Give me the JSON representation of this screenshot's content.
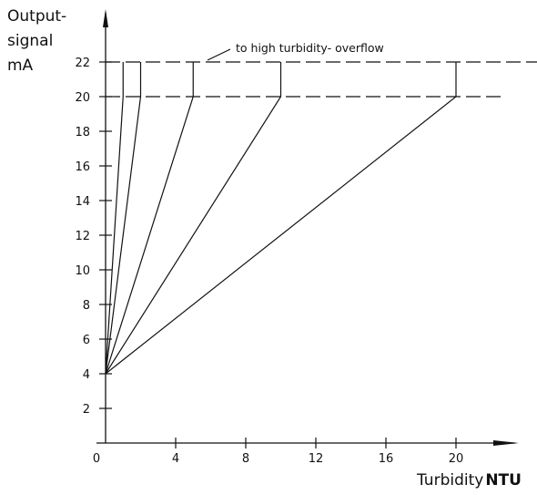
{
  "ylabel_lines": [
    "Output-",
    "signal",
    "mA"
  ],
  "xlabel": {
    "text": "Turbidity",
    "unit": "NTU"
  },
  "annotation": "to high turbidity- overflow",
  "chart_data": {
    "type": "line",
    "title": "",
    "xlabel": "Turbidity NTU",
    "ylabel": "Output-signal mA",
    "xlim": [
      0,
      22
    ],
    "ylim": [
      0,
      23
    ],
    "xticks": [
      0,
      4,
      8,
      12,
      16,
      20
    ],
    "yticks": [
      2,
      4,
      6,
      8,
      10,
      12,
      14,
      16,
      18,
      20,
      22
    ],
    "series": [
      {
        "points": [
          [
            0,
            4
          ],
          [
            1,
            20
          ],
          [
            1,
            22
          ]
        ]
      },
      {
        "points": [
          [
            0,
            4
          ],
          [
            2,
            20
          ],
          [
            2,
            22
          ]
        ]
      },
      {
        "points": [
          [
            0,
            4
          ],
          [
            5,
            20
          ],
          [
            5,
            22
          ]
        ]
      },
      {
        "points": [
          [
            0,
            4
          ],
          [
            10,
            20
          ],
          [
            10,
            22
          ]
        ]
      },
      {
        "points": [
          [
            0,
            4
          ],
          [
            20,
            20
          ],
          [
            20,
            22
          ]
        ]
      }
    ],
    "reference_lines": [
      {
        "y": 20,
        "style": "dashed"
      },
      {
        "y": 22,
        "style": "dashed"
      }
    ],
    "grid": false,
    "legend": "none",
    "colors": {
      "line": "#111111"
    }
  }
}
